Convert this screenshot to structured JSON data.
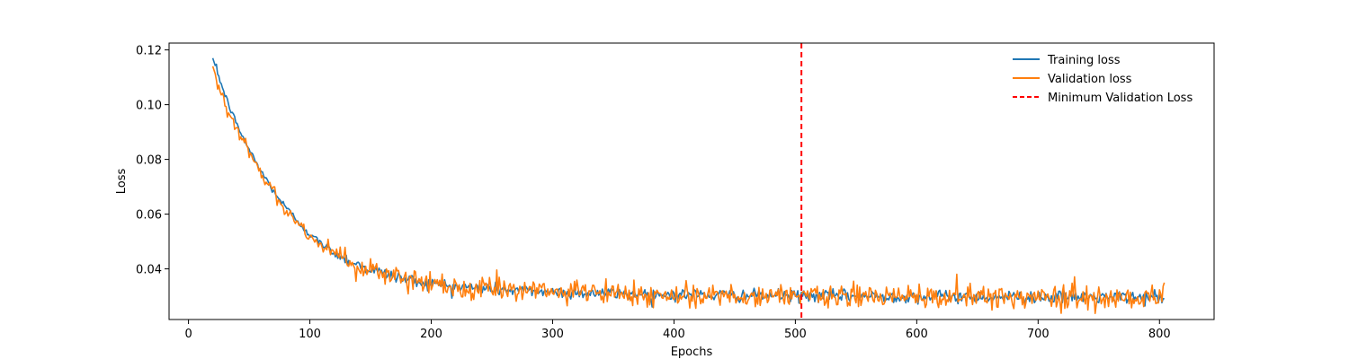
{
  "chart_data": {
    "type": "line",
    "title": "",
    "xlabel": "Epochs",
    "ylabel": "Loss",
    "xlim": [
      -16,
      845
    ],
    "ylim": [
      0.0215,
      0.1225
    ],
    "xticks": [
      0,
      100,
      200,
      300,
      400,
      500,
      600,
      700,
      800
    ],
    "yticks": [
      0.04,
      0.06,
      0.08,
      0.1,
      0.12
    ],
    "ytick_labels": [
      "0.04",
      "0.06",
      "0.08",
      "0.10",
      "0.12"
    ],
    "grid": false,
    "legend_position": "top-right",
    "x_start": 20,
    "x_end": 804,
    "series": [
      {
        "name": "Training loss",
        "color": "#1f77b4",
        "x": [
          20,
          30,
          40,
          50,
          60,
          70,
          80,
          90,
          100,
          110,
          120,
          130,
          140,
          150,
          160,
          170,
          180,
          190,
          200,
          220,
          240,
          260,
          280,
          300,
          320,
          340,
          360,
          380,
          400,
          420,
          440,
          460,
          480,
          500,
          520,
          540,
          560,
          580,
          600,
          620,
          640,
          660,
          680,
          700,
          720,
          740,
          760,
          780,
          800,
          804
        ],
        "y": [
          0.117,
          0.1035,
          0.0925,
          0.0835,
          0.0755,
          0.0685,
          0.0625,
          0.0575,
          0.0525,
          0.049,
          0.046,
          0.0435,
          0.0415,
          0.0398,
          0.0385,
          0.0373,
          0.0362,
          0.0353,
          0.0346,
          0.0336,
          0.0329,
          0.0324,
          0.032,
          0.0316,
          0.0313,
          0.0311,
          0.0309,
          0.0307,
          0.0306,
          0.0305,
          0.0304,
          0.0303,
          0.0302,
          0.0302,
          0.0301,
          0.0301,
          0.03,
          0.03,
          0.0299,
          0.0299,
          0.0298,
          0.0298,
          0.0298,
          0.0297,
          0.0297,
          0.0297,
          0.0296,
          0.0296,
          0.0296,
          0.029
        ]
      },
      {
        "name": "Validation loss",
        "color": "#ff7f0e",
        "x": [
          20,
          30,
          40,
          50,
          60,
          70,
          80,
          90,
          100,
          110,
          120,
          130,
          140,
          150,
          160,
          170,
          180,
          190,
          200,
          220,
          240,
          260,
          280,
          300,
          320,
          340,
          360,
          380,
          400,
          420,
          440,
          460,
          480,
          500,
          520,
          540,
          560,
          580,
          600,
          620,
          640,
          660,
          680,
          700,
          720,
          740,
          760,
          780,
          800,
          804
        ],
        "y": [
          0.114,
          0.1005,
          0.0905,
          0.0825,
          0.0745,
          0.068,
          0.062,
          0.057,
          0.052,
          0.0487,
          0.0458,
          0.0433,
          0.0413,
          0.0397,
          0.0383,
          0.0372,
          0.0361,
          0.0352,
          0.0345,
          0.0335,
          0.0328,
          0.0323,
          0.0319,
          0.0315,
          0.0312,
          0.031,
          0.0308,
          0.0306,
          0.0305,
          0.0304,
          0.0303,
          0.0302,
          0.0301,
          0.0301,
          0.03,
          0.03,
          0.0299,
          0.0299,
          0.0298,
          0.0298,
          0.0297,
          0.0297,
          0.0297,
          0.0296,
          0.0296,
          0.0296,
          0.0296,
          0.0296,
          0.0296,
          0.035
        ]
      }
    ],
    "vline": {
      "name": "Minimum Validation Loss",
      "x": 505,
      "color": "#ff0000",
      "style": "dashed"
    }
  }
}
